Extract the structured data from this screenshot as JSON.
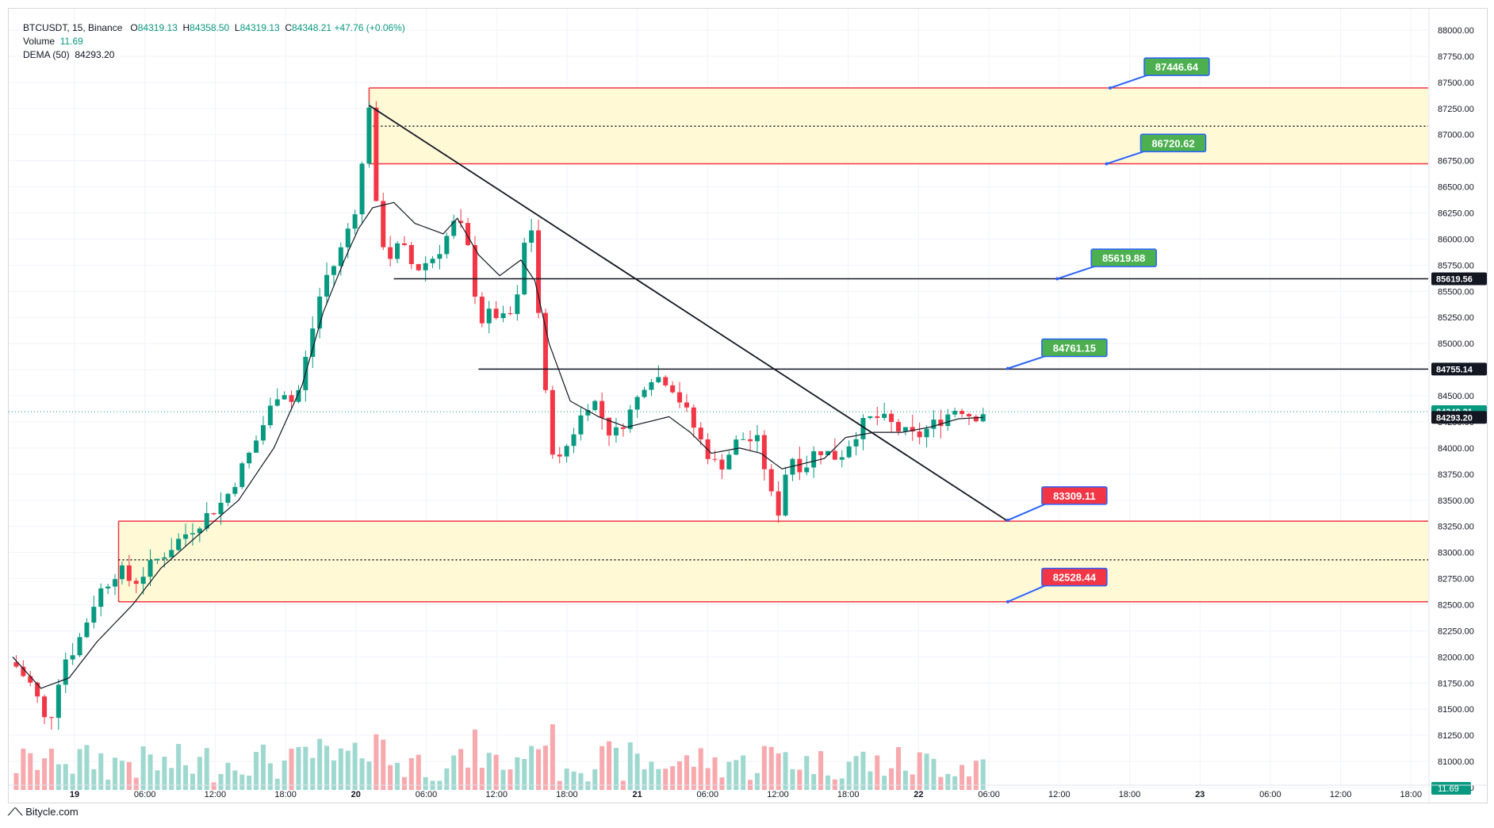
{
  "header": {
    "symbol": "BTCUSDT, 15, Binance",
    "ohlc": [
      {
        "k": "O",
        "v": "84319.13"
      },
      {
        "k": "H",
        "v": "84358.50"
      },
      {
        "k": "L",
        "v": "84319.13"
      },
      {
        "k": "C",
        "v": "84348.21"
      }
    ],
    "change": "+47.76 (+0.06%)",
    "volume_label": "Volume",
    "volume_value": "11.69",
    "dema_label": "DEMA (50)",
    "dema_value": "84293.20"
  },
  "footer": {
    "brand": "Bitycle.com"
  },
  "chart_data": {
    "type": "candlestick",
    "y_axis": {
      "min": 80750,
      "max": 88000,
      "ticks": [
        "88000.00",
        "87750.00",
        "87500.00",
        "87250.00",
        "87000.00",
        "86750.00",
        "86500.00",
        "86250.00",
        "86000.00",
        "85750.00",
        "85500.00",
        "85250.00",
        "85000.00",
        "84750.00",
        "84500.00",
        "84250.00",
        "84000.00",
        "83750.00",
        "83500.00",
        "83250.00",
        "83000.00",
        "82750.00",
        "82500.00",
        "82250.00",
        "82000.00",
        "81750.00",
        "81500.00",
        "81250.00",
        "81000.00",
        "80750.00"
      ]
    },
    "x_axis": {
      "ticks": [
        "19",
        "06:00",
        "12:00",
        "18:00",
        "20",
        "06:00",
        "12:00",
        "18:00",
        "21",
        "06:00",
        "12:00",
        "18:00",
        "22",
        "06:00",
        "12:00",
        "18:00",
        "23",
        "06:00",
        "12:00",
        "18:00"
      ],
      "bold_ticks": [
        "19",
        "20",
        "21",
        "22",
        "23"
      ]
    },
    "price_path": [
      {
        "t": 0,
        "p": 81950
      },
      {
        "t": 3,
        "p": 81700
      },
      {
        "t": 5,
        "p": 81300
      },
      {
        "t": 7,
        "p": 81950
      },
      {
        "t": 9,
        "p": 82100
      },
      {
        "t": 12,
        "p": 82600
      },
      {
        "t": 15,
        "p": 82850
      },
      {
        "t": 17,
        "p": 82700
      },
      {
        "t": 20,
        "p": 82900
      },
      {
        "t": 24,
        "p": 83150
      },
      {
        "t": 30,
        "p": 83500
      },
      {
        "t": 34,
        "p": 84000
      },
      {
        "t": 38,
        "p": 84600
      },
      {
        "t": 40,
        "p": 84400
      },
      {
        "t": 44,
        "p": 85600
      },
      {
        "t": 46,
        "p": 85800
      },
      {
        "t": 49,
        "p": 86400
      },
      {
        "t": 50.5,
        "p": 87300
      },
      {
        "t": 51.5,
        "p": 86300
      },
      {
        "t": 53,
        "p": 85800
      },
      {
        "t": 55,
        "p": 85950
      },
      {
        "t": 57,
        "p": 85700
      },
      {
        "t": 60,
        "p": 85850
      },
      {
        "t": 63,
        "p": 86200
      },
      {
        "t": 65,
        "p": 85800
      },
      {
        "t": 66,
        "p": 85200
      },
      {
        "t": 68,
        "p": 85300
      },
      {
        "t": 70,
        "p": 85200
      },
      {
        "t": 72,
        "p": 85500
      },
      {
        "t": 73,
        "p": 86400
      },
      {
        "t": 74,
        "p": 85800
      },
      {
        "t": 75,
        "p": 84800
      },
      {
        "t": 76,
        "p": 84200
      },
      {
        "t": 77,
        "p": 83800
      },
      {
        "t": 79,
        "p": 84100
      },
      {
        "t": 82,
        "p": 84500
      },
      {
        "t": 85,
        "p": 84100
      },
      {
        "t": 88,
        "p": 84400
      },
      {
        "t": 90,
        "p": 84700
      },
      {
        "t": 93,
        "p": 84650
      },
      {
        "t": 95,
        "p": 84400
      },
      {
        "t": 98,
        "p": 84000
      },
      {
        "t": 100,
        "p": 83800
      },
      {
        "t": 103,
        "p": 84100
      },
      {
        "t": 106,
        "p": 84050
      },
      {
        "t": 107,
        "p": 83600
      },
      {
        "t": 108.5,
        "p": 83400
      },
      {
        "t": 110,
        "p": 83950
      },
      {
        "t": 112,
        "p": 83800
      },
      {
        "t": 114,
        "p": 84000
      },
      {
        "t": 117,
        "p": 83900
      },
      {
        "t": 120,
        "p": 84200
      },
      {
        "t": 122,
        "p": 84300
      },
      {
        "t": 124,
        "p": 84250
      },
      {
        "t": 126,
        "p": 84150
      },
      {
        "t": 128,
        "p": 84100
      },
      {
        "t": 131,
        "p": 84250
      },
      {
        "t": 134,
        "p": 84400
      },
      {
        "t": 136,
        "p": 84300
      },
      {
        "t": 137.5,
        "p": 84348
      }
    ],
    "dema_path": [
      {
        "t": 0,
        "p": 82000
      },
      {
        "t": 4,
        "p": 81700
      },
      {
        "t": 8,
        "p": 81800
      },
      {
        "t": 12,
        "p": 82150
      },
      {
        "t": 17,
        "p": 82500
      },
      {
        "t": 21,
        "p": 82850
      },
      {
        "t": 26,
        "p": 83150
      },
      {
        "t": 32,
        "p": 83500
      },
      {
        "t": 37,
        "p": 84000
      },
      {
        "t": 41,
        "p": 84600
      },
      {
        "t": 44,
        "p": 85300
      },
      {
        "t": 47,
        "p": 85800
      },
      {
        "t": 49,
        "p": 86100
      },
      {
        "t": 51,
        "p": 86300
      },
      {
        "t": 54,
        "p": 86350
      },
      {
        "t": 57,
        "p": 86150
      },
      {
        "t": 61,
        "p": 86050
      },
      {
        "t": 63,
        "p": 86200
      },
      {
        "t": 66,
        "p": 85850
      },
      {
        "t": 69,
        "p": 85650
      },
      {
        "t": 72,
        "p": 85800
      },
      {
        "t": 74,
        "p": 85600
      },
      {
        "t": 76,
        "p": 85000
      },
      {
        "t": 79,
        "p": 84450
      },
      {
        "t": 83,
        "p": 84300
      },
      {
        "t": 87,
        "p": 84200
      },
      {
        "t": 90,
        "p": 84250
      },
      {
        "t": 93,
        "p": 84300
      },
      {
        "t": 96,
        "p": 84150
      },
      {
        "t": 99,
        "p": 83950
      },
      {
        "t": 103,
        "p": 84000
      },
      {
        "t": 106,
        "p": 83950
      },
      {
        "t": 109,
        "p": 83800
      },
      {
        "t": 112,
        "p": 83850
      },
      {
        "t": 115,
        "p": 83900
      },
      {
        "t": 118,
        "p": 84100
      },
      {
        "t": 122,
        "p": 84150
      },
      {
        "t": 126,
        "p": 84150
      },
      {
        "t": 130,
        "p": 84200
      },
      {
        "t": 134,
        "p": 84280
      },
      {
        "t": 137.5,
        "p": 84293
      }
    ],
    "supply_zone": {
      "top": 87446.64,
      "bottom": 86720.62,
      "mid": 87080,
      "start_t": 50.5
    },
    "demand_zone": {
      "top": 83300,
      "bottom": 82528.44,
      "mid": 82930,
      "start_t": 15
    },
    "trendline": {
      "t1": 50.5,
      "p1": 87280,
      "t2": 141,
      "p2": 83300
    },
    "horizontal_levels": [
      {
        "price": 85619.56,
        "start_t": 54,
        "end_t": 185
      },
      {
        "price": 84755.14,
        "start_t": 66,
        "end_t": 185
      }
    ],
    "callouts": [
      {
        "text": "87446.64",
        "color": "#4caf50",
        "anchor_t": 155.5,
        "anchor_p": 87446.64,
        "label_t": 161,
        "label_p": 87650
      },
      {
        "text": "86720.62",
        "color": "#4caf50",
        "anchor_t": 155,
        "anchor_p": 86720.62,
        "label_t": 160.5,
        "label_p": 86920
      },
      {
        "text": "85619.88",
        "color": "#4caf50",
        "anchor_t": 148,
        "anchor_p": 85619.88,
        "label_t": 153.5,
        "label_p": 85820
      },
      {
        "text": "84761.15",
        "color": "#4caf50",
        "anchor_t": 141,
        "anchor_p": 84761.15,
        "label_t": 146.5,
        "label_p": 84960
      },
      {
        "text": "83309.11",
        "color": "#f23645",
        "anchor_t": 141,
        "anchor_p": 83309.11,
        "label_t": 146.5,
        "label_p": 83545
      },
      {
        "text": "82528.44",
        "color": "#f23645",
        "anchor_t": 141,
        "anchor_p": 82528.44,
        "label_t": 146.5,
        "label_p": 82765
      }
    ],
    "axis_labels": [
      {
        "text": "85619.56",
        "price": 85619.56,
        "bg": "#131722"
      },
      {
        "text": "84755.14",
        "price": 84755.14,
        "bg": "#131722"
      },
      {
        "text": "84348.21",
        "price": 84348.21,
        "bg": "#089981"
      },
      {
        "text": "84293.20",
        "price": 84293.2,
        "bg": "#131722"
      }
    ],
    "volume_label": {
      "text": "11.69",
      "bg": "#089981"
    },
    "colors": {
      "up": "#089981",
      "down": "#f23645",
      "zone_fill": "#fff9d6",
      "zone_border": "#f23645",
      "line": "#131722",
      "callout_border": "#2962ff"
    },
    "candle_count": 138
  }
}
